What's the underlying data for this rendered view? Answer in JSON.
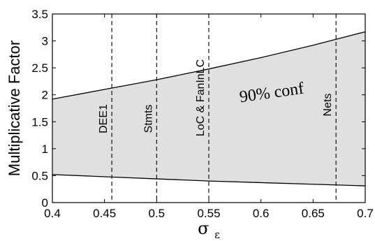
{
  "chart_data": {
    "type": "area",
    "title": "",
    "xlabel_symbol": "σ",
    "xlabel_subscript": "ε",
    "ylabel": "Multiplicative Factor",
    "xlim": [
      0.4,
      0.7
    ],
    "ylim": [
      0,
      3.5
    ],
    "x_ticks": [
      "0.4",
      "0.45",
      "0.5",
      "0.55",
      "0.6",
      "0.65",
      "0.7"
    ],
    "y_ticks": [
      "0",
      "0.5",
      "1",
      "1.5",
      "2",
      "2.5",
      "3",
      "3.5"
    ],
    "band_label": "90% conf",
    "band_color": "#e0e0e0",
    "grid": false,
    "x": [
      0.4,
      0.45,
      0.5,
      0.55,
      0.6,
      0.65,
      0.7
    ],
    "series": [
      {
        "values": [
          1.92,
          2.1,
          2.28,
          2.48,
          2.69,
          2.92,
          3.17
        ]
      },
      {
        "values": [
          0.52,
          0.48,
          0.44,
          0.4,
          0.37,
          0.34,
          0.31
        ]
      }
    ],
    "vertical_markers": [
      {
        "label": "DEE1",
        "x": 0.457
      },
      {
        "label": "Stmts",
        "x": 0.5
      },
      {
        "label": "LoC & FanInLC",
        "x": 0.55
      },
      {
        "label": "Nets",
        "x": 0.672
      }
    ]
  }
}
